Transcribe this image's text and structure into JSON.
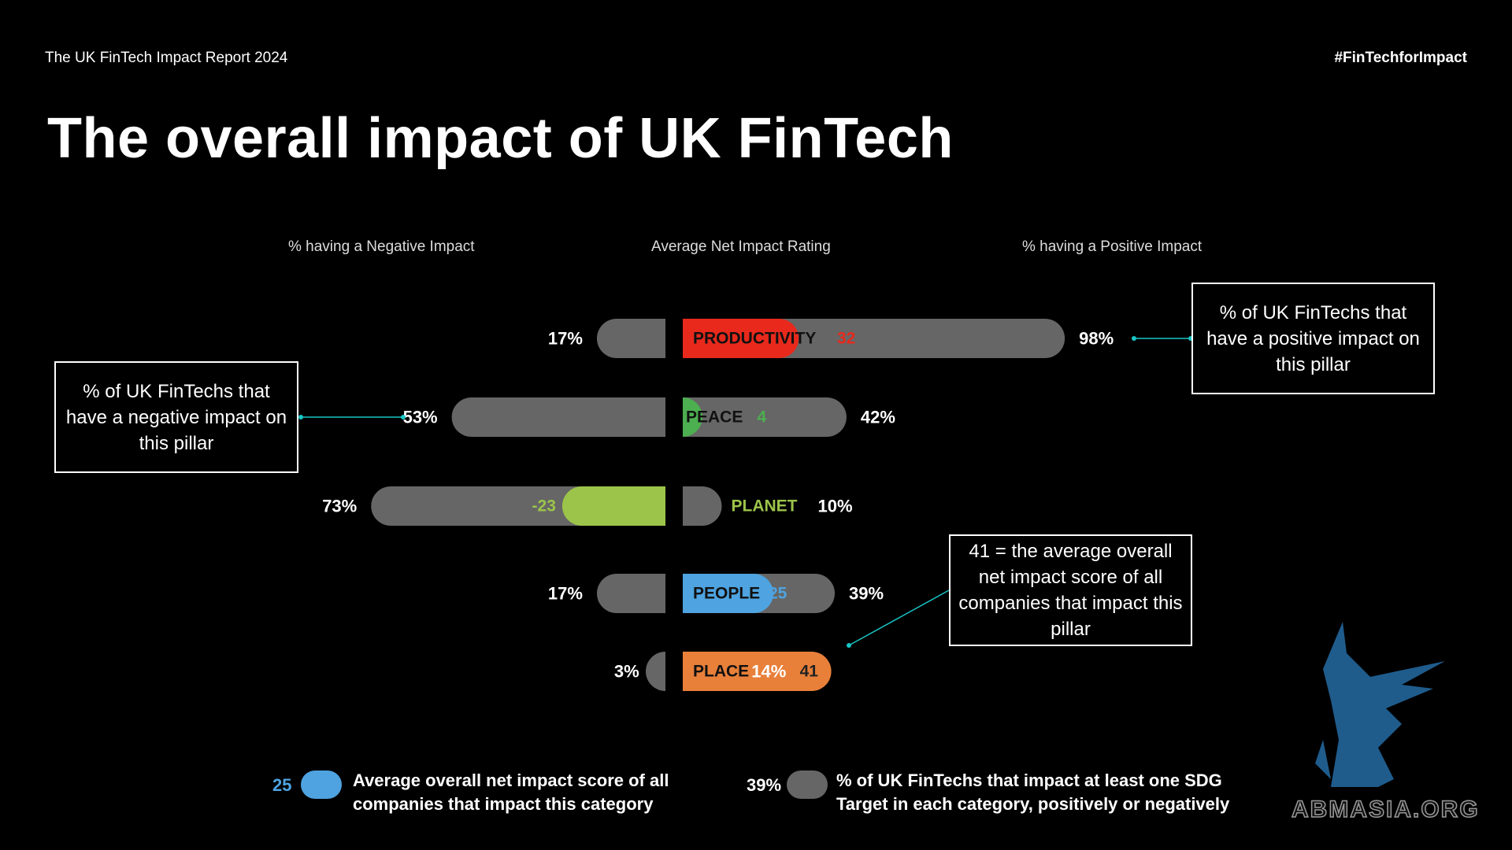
{
  "header": {
    "report_name": "The UK FinTech Impact Report 2024",
    "hashtag": "#FinTechforImpact"
  },
  "page_title": "The overall impact of UK FinTech",
  "column_headers": {
    "negative": "% having a Negative Impact",
    "net": "Average Net Impact Rating",
    "positive": "% having a Positive Impact"
  },
  "callouts": {
    "positive": "% of UK FinTechs that have a positive impact on this pillar",
    "negative": "% of UK FinTechs that have a negative impact on this pillar",
    "average": "41 = the average overall net impact score of all companies that impact this pillar"
  },
  "legend": {
    "score_value": "25",
    "score_text": "Average overall net impact score of all companies that impact this category",
    "score_color": "#4ea3e0",
    "share_value": "39%",
    "share_text": "% of UK FinTechs that impact at least one SDG Target in each category, positively or negatively",
    "share_color": "#666666"
  },
  "watermark": "ABMASIA.ORG",
  "chart_data": {
    "type": "bar",
    "categories": [
      "PRODUCTIVITY",
      "PEACE",
      "PLANET",
      "PEOPLE",
      "PLACE"
    ],
    "negative_pct": [
      17,
      53,
      73,
      17,
      3
    ],
    "positive_pct": [
      98,
      42,
      10,
      39,
      14
    ],
    "net_impact": [
      32,
      4,
      -23,
      25,
      41
    ],
    "colors": [
      "#e8291c",
      "#4caf50",
      "#9cc44a",
      "#4ea3e0",
      "#e8803a"
    ],
    "bar_color": "#666666"
  }
}
